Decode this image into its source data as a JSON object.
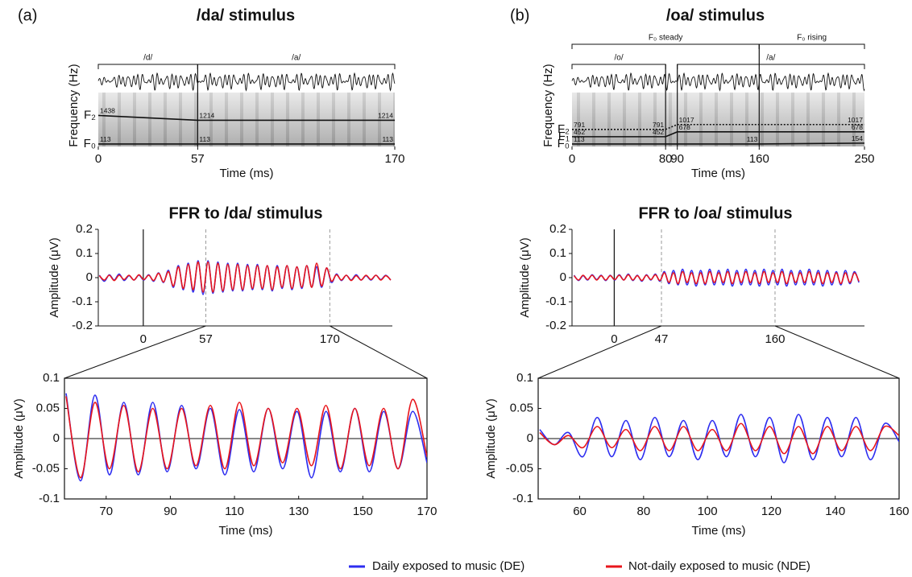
{
  "figure": {
    "legend": [
      {
        "name": "Daily exposed to music (DE)",
        "color": "#2d2df0"
      },
      {
        "name": "Not-daily exposed to music (NDE)",
        "color": "#e8161c"
      }
    ]
  },
  "chart_data": [
    {
      "type": "stimulus",
      "panel": "(a)",
      "title": "/da/ stimulus",
      "xlabel": "Time (ms)",
      "ylabel": "Frequency (Hz)",
      "xlim": [
        0,
        170
      ],
      "xticks": [
        0,
        57,
        170
      ],
      "ylim": [
        0,
        2500
      ],
      "brackets": [
        [
          {
            "label": "/d/",
            "start": 0,
            "end": 57
          },
          {
            "label": "/a/",
            "start": 57,
            "end": 170
          }
        ]
      ],
      "formants": [
        {
          "name": "F₂",
          "line_style": "solid",
          "x": [
            0,
            57,
            170
          ],
          "values": [
            1438,
            1214,
            1214
          ]
        },
        {
          "name": "F₀",
          "line_style": "solid",
          "x": [
            0,
            57,
            170
          ],
          "values": [
            113,
            113,
            113
          ]
        }
      ]
    },
    {
      "type": "stimulus",
      "panel": "(b)",
      "title": "/oa/ stimulus",
      "xlabel": "Time (ms)",
      "ylabel": "Frequency (Hz)",
      "xlim": [
        0,
        250
      ],
      "xticks": [
        0,
        80,
        90,
        160,
        250
      ],
      "ylim": [
        0,
        2500
      ],
      "brackets": [
        [
          {
            "label": "/o/",
            "start": 0,
            "end": 80
          },
          {
            "label": "/a/",
            "start": 90,
            "end": 250
          }
        ],
        [
          {
            "label": "F₀ steady",
            "start": 0,
            "end": 160
          },
          {
            "label": "F₀ rising",
            "start": 160,
            "end": 250
          }
        ]
      ],
      "formants": [
        {
          "name": "F₂",
          "line_style": "dotted",
          "x": [
            0,
            80,
            90,
            250
          ],
          "values": [
            791,
            791,
            1017,
            1017
          ]
        },
        {
          "name": "F₁",
          "line_style": "solid",
          "x": [
            0,
            80,
            90,
            250
          ],
          "values": [
            452,
            452,
            678,
            678
          ]
        },
        {
          "name": "F₀",
          "line_style": "solid",
          "x": [
            0,
            160,
            250
          ],
          "values": [
            113,
            113,
            154
          ]
        }
      ]
    },
    {
      "type": "ffr",
      "title": "FFR to /da/ stimulus",
      "ylabel": "Amplitude (μV)",
      "xlim": [
        -41,
        227
      ],
      "xticks": [
        0,
        57,
        170
      ],
      "ylim": [
        -0.2,
        0.2
      ],
      "yticks": [
        0.2,
        0.1,
        0,
        -0.1,
        -0.2
      ],
      "x": [
        -40,
        -35.5,
        -31,
        -26.5,
        -22,
        -17.5,
        -13,
        -8.5,
        -4,
        0.5,
        5,
        9.5,
        14,
        18.5,
        23,
        27.5,
        32,
        36.5,
        41,
        45.5,
        50,
        54.5,
        59,
        63.5,
        68,
        72.5,
        77,
        81.5,
        86,
        90.5,
        95,
        99.5,
        104,
        108.5,
        113,
        117.5,
        122,
        126.5,
        131,
        135.5,
        140,
        144.5,
        149,
        153.5,
        158,
        162.5,
        167,
        171.5,
        176,
        180.5,
        185,
        189.5,
        194,
        198.5,
        203,
        207.5,
        212,
        216.5,
        221,
        225.5
      ],
      "series": [
        {
          "values": [
            0.01,
            -0.015,
            0.012,
            -0.01,
            0.015,
            -0.012,
            0.008,
            -0.01,
            0.01,
            -0.01,
            0.012,
            -0.015,
            0.02,
            -0.02,
            0.03,
            -0.04,
            0.05,
            -0.05,
            0.06,
            -0.06,
            0.07,
            -0.07,
            0.07,
            -0.065,
            0.065,
            -0.06,
            0.06,
            -0.055,
            0.06,
            -0.055,
            0.055,
            -0.05,
            0.055,
            -0.05,
            0.05,
            -0.055,
            0.05,
            -0.045,
            0.05,
            -0.05,
            0.045,
            -0.045,
            0.05,
            -0.04,
            0.045,
            -0.04,
            0.04,
            -0.02,
            0.015,
            -0.012,
            0.01,
            -0.01,
            0.012,
            -0.01,
            0.008,
            -0.01,
            0.01,
            -0.008,
            0.01,
            -0.01
          ]
        },
        {
          "values": [
            0.008,
            -0.01,
            0.01,
            -0.012,
            0.01,
            -0.008,
            0.01,
            -0.01,
            0.012,
            -0.008,
            0.01,
            -0.012,
            0.018,
            -0.018,
            0.025,
            -0.035,
            0.045,
            -0.045,
            0.055,
            -0.05,
            0.065,
            -0.06,
            0.065,
            -0.06,
            0.06,
            -0.055,
            0.055,
            -0.05,
            0.055,
            -0.05,
            0.05,
            -0.045,
            0.05,
            -0.045,
            0.05,
            -0.05,
            0.045,
            -0.04,
            0.05,
            -0.045,
            0.045,
            -0.04,
            0.05,
            -0.04,
            0.06,
            -0.035,
            0.04,
            -0.015,
            0.012,
            -0.01,
            0.01,
            -0.012,
            0.008,
            -0.01,
            0.01,
            -0.008,
            0.01,
            -0.01,
            0.008,
            -0.01
          ]
        }
      ]
    },
    {
      "type": "ffr",
      "title": "FFR to /oa/ stimulus",
      "ylabel": "Amplitude (μV)",
      "xlim": [
        -42,
        249
      ],
      "xticks": [
        0,
        47,
        160
      ],
      "ylim": [
        -0.2,
        0.2
      ],
      "yticks": [
        0.2,
        0.1,
        0,
        -0.1,
        -0.2
      ],
      "x": [
        -40,
        -35.5,
        -31,
        -26.5,
        -22,
        -17.5,
        -13,
        -8.5,
        -4,
        0.5,
        5,
        9.5,
        14,
        18.5,
        23,
        27.5,
        32,
        36.5,
        41,
        45.5,
        50,
        54.5,
        59,
        63.5,
        68,
        72.5,
        77,
        81.5,
        86,
        90.5,
        95,
        99.5,
        104,
        108.5,
        113,
        117.5,
        122,
        126.5,
        131,
        135.5,
        140,
        144.5,
        149,
        153.5,
        158,
        162.5,
        167,
        171.5,
        176,
        180.5,
        185,
        189.5,
        194,
        198.5,
        203,
        207.5,
        212,
        216.5,
        221,
        225.5,
        230,
        234.5,
        239,
        243.5
      ],
      "series": [
        {
          "values": [
            0.01,
            -0.012,
            0.008,
            -0.01,
            0.012,
            -0.008,
            0.01,
            -0.012,
            0.01,
            -0.01,
            0.012,
            -0.01,
            0.015,
            -0.012,
            0.01,
            -0.015,
            0.012,
            -0.01,
            0.015,
            -0.015,
            0.025,
            -0.025,
            0.03,
            -0.03,
            0.035,
            -0.03,
            0.03,
            -0.035,
            0.03,
            -0.03,
            0.035,
            -0.03,
            0.03,
            -0.03,
            0.035,
            -0.035,
            0.03,
            -0.03,
            0.035,
            -0.03,
            0.03,
            -0.035,
            0.035,
            -0.03,
            0.03,
            -0.03,
            0.035,
            -0.035,
            0.03,
            -0.03,
            0.03,
            -0.03,
            0.035,
            -0.03,
            0.03,
            -0.035,
            0.03,
            -0.03,
            0.025,
            -0.03,
            0.03,
            -0.025,
            0.025,
            -0.02
          ]
        },
        {
          "values": [
            0.008,
            -0.01,
            0.01,
            -0.008,
            0.01,
            -0.01,
            0.008,
            -0.01,
            0.008,
            -0.008,
            0.01,
            -0.01,
            0.012,
            -0.01,
            0.008,
            -0.012,
            0.01,
            -0.008,
            0.012,
            -0.012,
            0.02,
            -0.02,
            0.02,
            -0.025,
            0.025,
            -0.02,
            0.02,
            -0.025,
            0.02,
            -0.025,
            0.025,
            -0.02,
            0.02,
            -0.02,
            0.025,
            -0.025,
            0.02,
            -0.02,
            0.025,
            -0.02,
            0.02,
            -0.025,
            0.025,
            -0.02,
            0.02,
            -0.02,
            0.025,
            -0.025,
            0.02,
            -0.02,
            0.02,
            -0.02,
            0.025,
            -0.02,
            0.02,
            -0.025,
            0.02,
            -0.02,
            0.02,
            -0.025,
            0.02,
            -0.02,
            0.02,
            -0.015
          ]
        }
      ]
    },
    {
      "type": "zoom",
      "xlabel": "Time (ms)",
      "ylabel": "Amplitude (μV)",
      "xlim": [
        57,
        170
      ],
      "xticks": [
        70,
        90,
        110,
        130,
        150,
        170
      ],
      "ylim": [
        -0.1,
        0.1
      ],
      "yticks": [
        0.1,
        0.05,
        0,
        -0.05,
        -0.1
      ],
      "x": [
        57.5,
        62,
        66.5,
        71,
        75.5,
        80,
        84.5,
        89,
        93.5,
        98,
        102.5,
        107,
        111.5,
        116,
        120.5,
        125,
        129.5,
        134,
        138.5,
        143,
        147.5,
        152,
        156.5,
        161,
        165.5,
        170
      ],
      "series": [
        {
          "values": [
            0.075,
            -0.07,
            0.072,
            -0.06,
            0.06,
            -0.06,
            0.06,
            -0.055,
            0.055,
            -0.05,
            0.05,
            -0.06,
            0.048,
            -0.055,
            0.05,
            -0.05,
            0.045,
            -0.065,
            0.045,
            -0.055,
            0.05,
            -0.055,
            0.045,
            -0.05,
            0.045,
            -0.04
          ]
        },
        {
          "values": [
            0.07,
            -0.065,
            0.06,
            -0.05,
            0.055,
            -0.055,
            0.05,
            -0.05,
            0.05,
            -0.045,
            0.055,
            -0.05,
            0.06,
            -0.045,
            0.05,
            -0.04,
            0.05,
            -0.045,
            0.055,
            -0.05,
            0.05,
            -0.045,
            0.05,
            -0.05,
            0.065,
            -0.03
          ]
        }
      ]
    },
    {
      "type": "zoom",
      "xlabel": "Time (ms)",
      "ylabel": "Amplitude (μV)",
      "xlim": [
        47,
        160
      ],
      "xticks": [
        60,
        80,
        100,
        120,
        140,
        160
      ],
      "ylim": [
        -0.1,
        0.1
      ],
      "yticks": [
        0.1,
        0.05,
        0,
        -0.05,
        -0.1
      ],
      "x": [
        47.5,
        52,
        56.5,
        61,
        65.5,
        70,
        74.5,
        79,
        83.5,
        88,
        92.5,
        97,
        101.5,
        106,
        110.5,
        115,
        119.5,
        124,
        128.5,
        133,
        137.5,
        142,
        146.5,
        151,
        155.5,
        160
      ],
      "series": [
        {
          "values": [
            0.015,
            -0.01,
            0.01,
            -0.03,
            0.035,
            -0.03,
            0.03,
            -0.035,
            0.035,
            -0.03,
            0.03,
            -0.035,
            0.03,
            -0.03,
            0.04,
            -0.03,
            0.035,
            -0.04,
            0.04,
            -0.035,
            0.035,
            -0.03,
            0.035,
            -0.035,
            0.025,
            -0.005
          ]
        },
        {
          "values": [
            0.01,
            -0.01,
            0.005,
            -0.015,
            0.02,
            -0.015,
            0.015,
            -0.02,
            0.02,
            -0.02,
            0.02,
            -0.02,
            0.015,
            -0.02,
            0.025,
            -0.02,
            0.02,
            -0.025,
            0.02,
            -0.025,
            0.02,
            -0.02,
            0.02,
            -0.02,
            0.02,
            0.005
          ]
        }
      ]
    }
  ]
}
